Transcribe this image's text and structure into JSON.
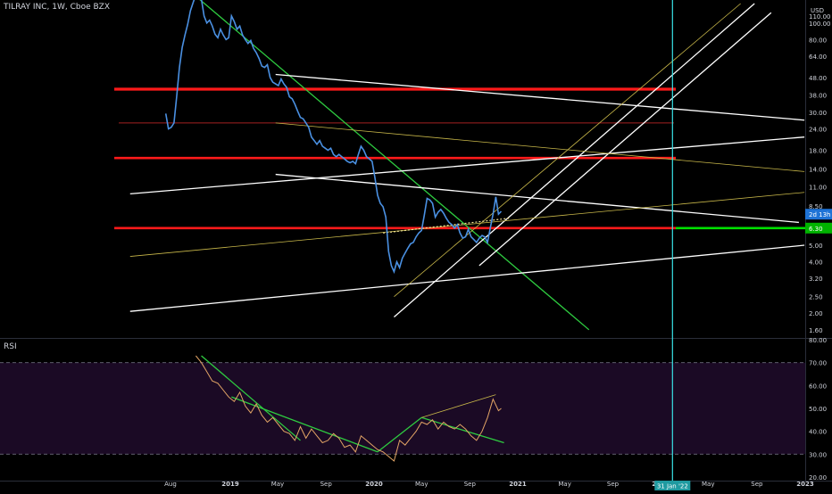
{
  "header": {
    "title": "TILRAY INC, 1W, Cboe BZX"
  },
  "price_panel": {
    "currency": "USD"
  },
  "rsi_panel": {
    "label": "RSI"
  },
  "badges": {
    "price_tag": "2d 13h",
    "level_tag": "6.30",
    "crosshair_date": "31 Jan '22"
  },
  "colors": {
    "background": "#000000",
    "price_line": "#4a90e2",
    "rsi_line": "#e3a566",
    "support_red": "#ff1a1a",
    "trend_green": "#2ecc40",
    "trend_white": "#ffffff",
    "trend_yellow": "#c9b84a",
    "cursor_cyan": "#39e1e6",
    "level_green": "#00e000"
  },
  "chart_data": [
    {
      "type": "line",
      "name": "price",
      "yscale": "log",
      "ylim": [
        1.45,
        130
      ],
      "y_ticks": [
        "110.00",
        "100.00",
        "80.00",
        "64.00",
        "48.00",
        "38.00",
        "30.00",
        "24.00",
        "18.00",
        "14.00",
        "11.00",
        "8.50",
        "6.50",
        "5.00",
        "4.00",
        "3.20",
        "2.50",
        "2.00",
        "1.60"
      ],
      "x_ticks": [
        "Aug",
        "2019",
        "May",
        "Sep",
        "2020",
        "May",
        "Sep",
        "2021",
        "May",
        "Sep",
        "2022",
        "May",
        "Sep",
        "2023"
      ],
      "x": [
        "2018-07-20",
        "2018-07-27",
        "2018-08-03",
        "2018-08-10",
        "2018-08-17",
        "2018-08-24",
        "2018-08-31",
        "2018-09-07",
        "2018-09-14",
        "2018-09-21",
        "2018-09-28",
        "2018-10-05",
        "2018-10-12",
        "2018-10-19",
        "2018-10-26",
        "2018-11-02",
        "2018-11-09",
        "2018-11-16",
        "2018-11-23",
        "2018-11-30",
        "2018-12-07",
        "2018-12-14",
        "2018-12-21",
        "2018-12-28",
        "2019-01-04",
        "2019-01-11",
        "2019-01-18",
        "2019-01-25",
        "2019-02-01",
        "2019-02-08",
        "2019-02-15",
        "2019-02-22",
        "2019-03-01",
        "2019-03-08",
        "2019-03-15",
        "2019-03-22",
        "2019-03-29",
        "2019-04-05",
        "2019-04-12",
        "2019-04-19",
        "2019-04-26",
        "2019-05-03",
        "2019-05-10",
        "2019-05-17",
        "2019-05-24",
        "2019-05-31",
        "2019-06-07",
        "2019-06-14",
        "2019-06-21",
        "2019-06-28",
        "2019-07-05",
        "2019-07-12",
        "2019-07-19",
        "2019-07-26",
        "2019-08-02",
        "2019-08-09",
        "2019-08-16",
        "2019-08-23",
        "2019-08-30",
        "2019-09-06",
        "2019-09-13",
        "2019-09-20",
        "2019-09-27",
        "2019-10-04",
        "2019-10-11",
        "2019-10-18",
        "2019-10-25",
        "2019-11-01",
        "2019-11-08",
        "2019-11-15",
        "2019-11-22",
        "2019-11-29",
        "2019-12-06",
        "2019-12-13",
        "2019-12-20",
        "2019-12-27",
        "2020-01-03",
        "2020-01-10",
        "2020-01-17",
        "2020-01-24",
        "2020-01-31",
        "2020-02-07",
        "2020-02-14",
        "2020-02-21",
        "2020-02-28",
        "2020-03-06",
        "2020-03-13",
        "2020-03-20",
        "2020-03-27",
        "2020-04-03",
        "2020-04-10",
        "2020-04-17",
        "2020-04-24",
        "2020-05-01",
        "2020-05-08",
        "2020-05-15",
        "2020-05-22",
        "2020-05-29",
        "2020-06-05",
        "2020-06-12",
        "2020-06-19",
        "2020-06-26",
        "2020-07-03",
        "2020-07-10",
        "2020-07-17",
        "2020-07-24",
        "2020-07-31",
        "2020-08-07",
        "2020-08-14",
        "2020-08-21",
        "2020-08-28",
        "2020-09-04",
        "2020-09-11",
        "2020-09-18",
        "2020-09-25",
        "2020-10-02",
        "2020-10-09",
        "2020-10-16",
        "2020-10-23",
        "2020-10-30",
        "2020-11-06",
        "2020-11-13",
        "2020-11-20"
      ],
      "y": [
        29.5,
        24,
        24.5,
        26,
        37,
        55,
        72,
        85,
        98,
        118,
        132,
        146,
        142,
        138,
        110,
        100,
        104,
        96,
        86,
        82,
        92,
        85,
        80,
        82,
        110,
        102,
        92,
        96,
        85,
        80,
        76,
        79,
        71,
        67,
        62,
        56,
        55,
        57,
        48,
        45,
        44,
        43,
        47,
        44,
        42,
        37,
        36,
        33.5,
        30.5,
        28,
        27.5,
        26,
        24.5,
        21.5,
        20.5,
        19.5,
        20.5,
        19,
        18.5,
        18,
        18.5,
        17,
        16.5,
        17,
        16.5,
        16,
        15.5,
        15.2,
        15.5,
        15,
        17,
        19,
        18,
        16.5,
        16,
        15.5,
        12.5,
        9.8,
        8.8,
        8.4,
        7.3,
        4.6,
        3.8,
        3.5,
        4,
        3.7,
        4.2,
        4.5,
        4.8,
        5.1,
        5.2,
        5.6,
        5.9,
        6.1,
        7.5,
        9.4,
        9.2,
        8.8,
        7.3,
        7.8,
        8.1,
        7.7,
        7.2,
        6.8,
        6.6,
        6.3,
        6.6,
        5.9,
        5.5,
        5.6,
        6.2,
        5.6,
        5.4,
        5.2,
        5.5,
        5.7,
        5.6,
        5.2,
        6.3,
        7.6,
        9.6,
        7.6,
        7.9
      ],
      "horizontal_levels": [
        41,
        26,
        16.2,
        6.3
      ],
      "trend_lines": [
        {
          "color": "green",
          "from": [
            "2018-09-28",
            148
          ],
          "to": [
            "2021-07-02",
            1.6
          ]
        },
        {
          "color": "white",
          "from": [
            "2019-04-26",
            50
          ],
          "to": [
            "2022-12-30",
            27
          ]
        },
        {
          "color": "white",
          "from": [
            "2019-04-26",
            13
          ],
          "to": [
            "2022-12-16",
            6.8
          ]
        },
        {
          "color": "white",
          "from": [
            "2018-04-20",
            10
          ],
          "to": [
            "2022-12-30",
            21.5
          ]
        },
        {
          "color": "white",
          "from": [
            "2018-04-20",
            2.05
          ],
          "to": [
            "2022-12-30",
            5
          ]
        },
        {
          "color": "white",
          "from": [
            "2020-02-21",
            1.9
          ],
          "to": [
            "2022-08-26",
            130
          ]
        },
        {
          "color": "white",
          "from": [
            "2020-09-25",
            3.8
          ],
          "to": [
            "2022-10-07",
            115
          ]
        },
        {
          "color": "yellow",
          "from": [
            "2018-04-20",
            4.3
          ],
          "to": [
            "2022-12-30",
            10.2
          ]
        },
        {
          "color": "yellow",
          "from": [
            "2019-04-26",
            26
          ],
          "to": [
            "2022-12-30",
            13.5
          ]
        },
        {
          "color": "yellow",
          "from": [
            "2020-02-21",
            2.5
          ],
          "to": [
            "2022-07-22",
            130
          ]
        }
      ],
      "vertical_marker": "2022-01-31"
    },
    {
      "type": "line",
      "name": "RSI",
      "ylim": [
        20,
        80
      ],
      "y_ticks": [
        "80.00",
        "70.00",
        "60.00",
        "50.00",
        "40.00",
        "30.00",
        "20.00"
      ],
      "bands": [
        70,
        30
      ],
      "x": [
        "2018-10-05",
        "2018-10-19",
        "2018-11-02",
        "2018-11-16",
        "2018-11-30",
        "2018-12-14",
        "2018-12-28",
        "2019-01-11",
        "2019-01-25",
        "2019-02-08",
        "2019-02-22",
        "2019-03-08",
        "2019-03-22",
        "2019-04-05",
        "2019-04-19",
        "2019-05-03",
        "2019-05-17",
        "2019-05-31",
        "2019-06-14",
        "2019-06-28",
        "2019-07-12",
        "2019-07-26",
        "2019-08-09",
        "2019-08-23",
        "2019-09-06",
        "2019-09-20",
        "2019-10-04",
        "2019-10-18",
        "2019-11-01",
        "2019-11-15",
        "2019-11-29",
        "2019-12-13",
        "2019-12-27",
        "2020-01-10",
        "2020-01-24",
        "2020-02-07",
        "2020-02-21",
        "2020-03-06",
        "2020-03-20",
        "2020-04-03",
        "2020-04-17",
        "2020-05-01",
        "2020-05-15",
        "2020-05-29",
        "2020-06-12",
        "2020-06-26",
        "2020-07-10",
        "2020-07-24",
        "2020-08-07",
        "2020-08-21",
        "2020-09-04",
        "2020-09-18",
        "2020-10-02",
        "2020-10-16",
        "2020-10-30",
        "2020-11-13",
        "2020-11-20"
      ],
      "y": [
        73,
        70,
        66,
        62,
        61,
        58,
        55,
        53,
        57,
        51,
        48,
        52,
        47,
        44,
        46,
        43,
        40,
        39,
        36,
        42,
        37,
        41,
        38,
        35,
        36,
        39,
        37,
        33,
        34,
        31,
        38,
        36,
        34,
        32,
        31,
        29,
        27,
        36,
        34,
        37,
        40,
        44,
        43,
        45,
        41,
        44,
        42,
        41,
        43,
        41,
        38,
        36,
        40,
        46,
        54,
        49,
        50
      ],
      "trend_lines": [
        {
          "color": "green",
          "from": [
            "2018-10-19",
            73
          ],
          "to": [
            "2019-06-28",
            36
          ]
        },
        {
          "color": "green",
          "from": [
            "2019-01-04",
            55
          ],
          "to": [
            "2020-01-10",
            31
          ]
        },
        {
          "color": "green",
          "from": [
            "2020-01-10",
            31
          ],
          "to": [
            "2020-05-01",
            46
          ]
        },
        {
          "color": "green",
          "from": [
            "2020-05-01",
            46
          ],
          "to": [
            "2020-11-27",
            35
          ]
        },
        {
          "color": "yellow",
          "from": [
            "2020-05-01",
            46
          ],
          "to": [
            "2020-11-06",
            56
          ]
        }
      ]
    }
  ]
}
